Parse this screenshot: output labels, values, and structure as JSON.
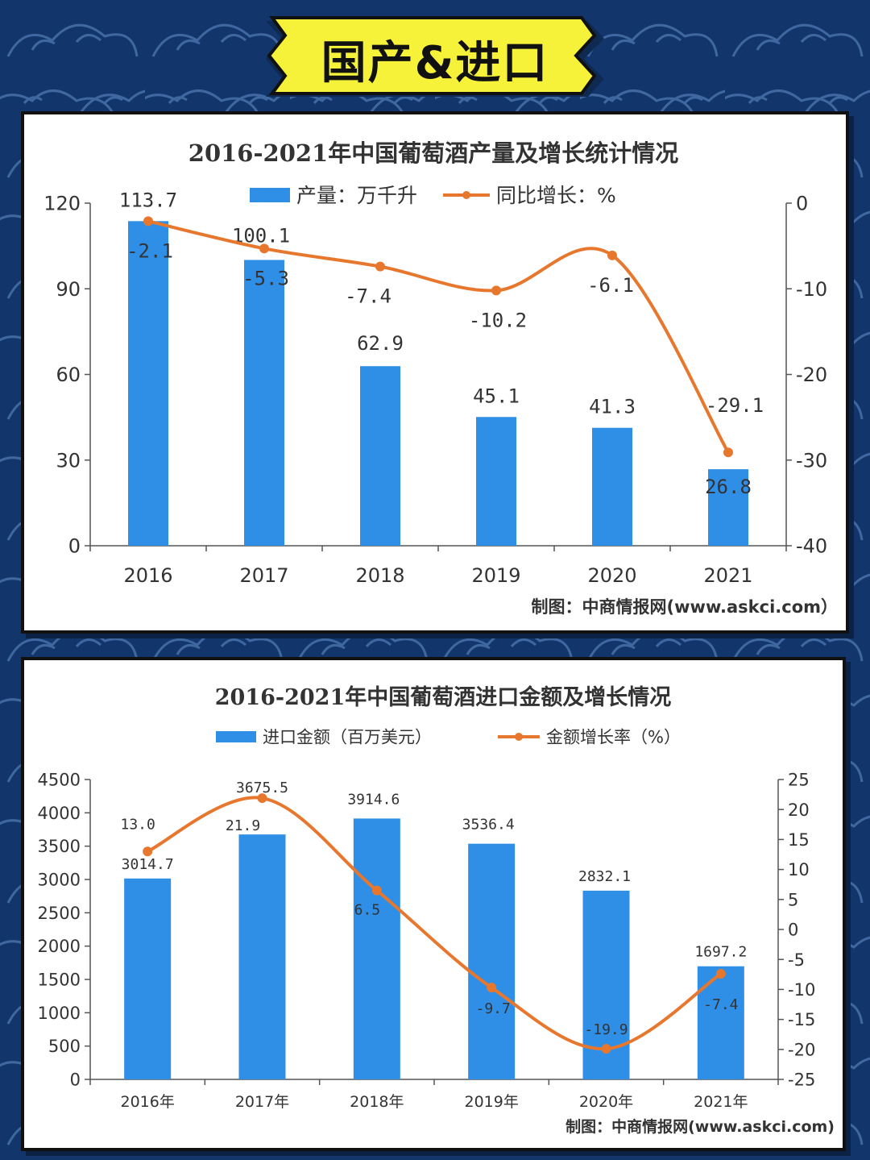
{
  "banner": {
    "title": "国产&进口"
  },
  "colors": {
    "background": "#12366b",
    "banner": "#f6f23a",
    "bar": "#2f8fe6",
    "line": "#e8772e"
  },
  "chart_data": [
    {
      "type": "bar",
      "title": "2016-2021年中国葡萄酒产量及增长统计情况",
      "categories": [
        "2016",
        "2017",
        "2018",
        "2019",
        "2020",
        "2021"
      ],
      "series": [
        {
          "name": "产量：万千升",
          "type": "bar",
          "axis": "left",
          "values": [
            113.7,
            100.1,
            62.9,
            45.1,
            41.3,
            26.8
          ],
          "labels": [
            "113.7",
            "100.1",
            "62.9",
            "45.1",
            "41.3",
            "26.8"
          ]
        },
        {
          "name": "同比增长：%",
          "type": "line",
          "axis": "right",
          "values": [
            -2.1,
            -5.3,
            -7.4,
            -10.2,
            -6.1,
            -29.1
          ],
          "labels": [
            "-2.1",
            "-5.3",
            "-7.4",
            "-10.2",
            "-6.1",
            "-29.1"
          ]
        }
      ],
      "ylim_left": [
        0,
        120
      ],
      "yticks_left": [
        "0",
        "30",
        "60",
        "90",
        "120"
      ],
      "ylim_right": [
        -40,
        0
      ],
      "yticks_right": [
        "-40",
        "-30",
        "-20",
        "-10",
        "0"
      ],
      "legend_position": "top",
      "credit": "制图：中商情报网(www.askci.com）"
    },
    {
      "type": "bar",
      "title": "2016-2021年中国葡萄酒进口金额及增长情况",
      "categories": [
        "2016年",
        "2017年",
        "2018年",
        "2019年",
        "2020年",
        "2021年"
      ],
      "series": [
        {
          "name": "进口金额（百万美元）",
          "type": "bar",
          "axis": "left",
          "values": [
            3014.7,
            3675.5,
            3914.6,
            3536.4,
            2832.1,
            1697.2
          ],
          "labels": [
            "3014.7",
            "3675.5",
            "3914.6",
            "3536.4",
            "2832.1",
            "1697.2"
          ]
        },
        {
          "name": "金额增长率（%）",
          "type": "line",
          "axis": "right",
          "values": [
            13.0,
            21.9,
            6.5,
            -9.7,
            -19.9,
            -7.4
          ],
          "labels": [
            "13.0",
            "21.9",
            "6.5",
            "-9.7",
            "-19.9",
            "-7.4"
          ]
        }
      ],
      "ylim_left": [
        0,
        4500
      ],
      "yticks_left": [
        "0",
        "500",
        "1000",
        "1500",
        "2000",
        "2500",
        "3000",
        "3500",
        "4000",
        "4500"
      ],
      "ylim_right": [
        -25,
        25
      ],
      "yticks_right": [
        "-25",
        "-20",
        "-15",
        "-10",
        "-5",
        "0",
        "5",
        "10",
        "15",
        "20",
        "25"
      ],
      "legend_position": "top",
      "credit": "制图：中商情报网(www.askci.com)"
    }
  ]
}
